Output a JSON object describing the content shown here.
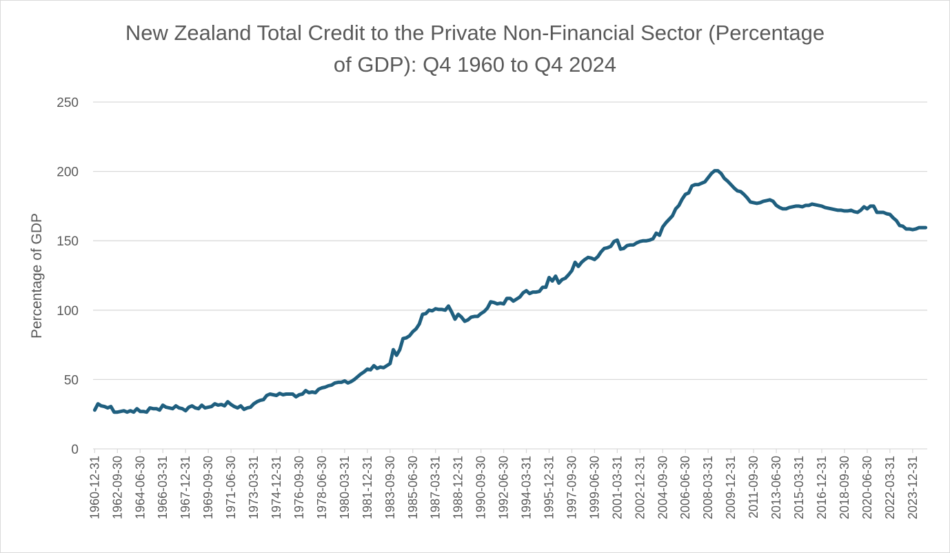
{
  "chart_data": {
    "type": "line",
    "title_lines": [
      "New Zealand Total Credit to the Private Non-Financial Sector (Percentage",
      "of GDP): Q4 1960 to Q4 2024"
    ],
    "xlabel": "",
    "ylabel": "Percentage of GDP",
    "ylim": [
      0,
      250
    ],
    "yticks": [
      0,
      50,
      100,
      150,
      200,
      250
    ],
    "x_range": [
      "1960-12-31",
      "2024-12-31"
    ],
    "grid": true,
    "legend": "none",
    "x_tick_labels": [
      "1960-12-31",
      "1962-09-30",
      "1964-06-30",
      "1966-03-31",
      "1967-12-31",
      "1969-09-30",
      "1971-06-30",
      "1973-03-31",
      "1974-12-31",
      "1976-09-30",
      "1978-06-30",
      "1980-03-31",
      "1981-12-31",
      "1983-09-30",
      "1985-06-30",
      "1987-03-31",
      "1988-12-31",
      "1990-09-30",
      "1992-06-30",
      "1994-03-31",
      "1995-12-31",
      "1997-09-30",
      "1999-06-30",
      "2001-03-31",
      "2002-12-31",
      "2004-09-30",
      "2006-06-30",
      "2008-03-31",
      "2009-12-31",
      "2011-09-30",
      "2013-06-30",
      "2015-03-31",
      "2016-12-31",
      "2018-09-30",
      "2020-06-30",
      "2022-03-31",
      "2023-12-31"
    ],
    "series": [
      {
        "name": "Total credit to private non-financial sector (% of GDP)",
        "color": "#1f5f7f",
        "points": [
          [
            "1960-12-31",
            28
          ],
          [
            "1961-03-31",
            32.5
          ],
          [
            "1961-06-30",
            31
          ],
          [
            "1961-09-30",
            30.5
          ],
          [
            "1961-12-31",
            29.5
          ],
          [
            "1962-03-31",
            30.5
          ],
          [
            "1962-06-30",
            26.5
          ],
          [
            "1962-09-30",
            26.5
          ],
          [
            "1962-12-31",
            27
          ],
          [
            "1963-03-31",
            27.5
          ],
          [
            "1963-06-30",
            26.5
          ],
          [
            "1963-09-30",
            27.5
          ],
          [
            "1963-12-31",
            26.5
          ],
          [
            "1964-03-31",
            29
          ],
          [
            "1964-06-30",
            27
          ],
          [
            "1964-09-30",
            27
          ],
          [
            "1964-12-31",
            26.5
          ],
          [
            "1965-03-31",
            29.5
          ],
          [
            "1965-06-30",
            29
          ],
          [
            "1965-09-30",
            29
          ],
          [
            "1965-12-31",
            28
          ],
          [
            "1966-03-31",
            31.5
          ],
          [
            "1966-06-30",
            30
          ],
          [
            "1966-09-30",
            29.5
          ],
          [
            "1966-12-31",
            29
          ],
          [
            "1967-03-31",
            31
          ],
          [
            "1967-06-30",
            29.5
          ],
          [
            "1967-09-30",
            29
          ],
          [
            "1967-12-31",
            27.5
          ],
          [
            "1968-03-31",
            30
          ],
          [
            "1968-06-30",
            31
          ],
          [
            "1968-09-30",
            29.5
          ],
          [
            "1968-12-31",
            29
          ],
          [
            "1969-03-31",
            31.5
          ],
          [
            "1969-06-30",
            29.5
          ],
          [
            "1969-09-30",
            30
          ],
          [
            "1969-12-31",
            30.5
          ],
          [
            "1970-03-31",
            32.5
          ],
          [
            "1970-06-30",
            31.5
          ],
          [
            "1970-09-30",
            32
          ],
          [
            "1970-12-31",
            31
          ],
          [
            "1971-03-31",
            34
          ],
          [
            "1971-06-30",
            32
          ],
          [
            "1971-09-30",
            30.5
          ],
          [
            "1971-12-31",
            29.5
          ],
          [
            "1972-03-31",
            31
          ],
          [
            "1972-06-30",
            28.5
          ],
          [
            "1972-09-30",
            29.5
          ],
          [
            "1972-12-31",
            30
          ],
          [
            "1973-03-31",
            32.5
          ],
          [
            "1973-06-30",
            34
          ],
          [
            "1973-09-30",
            35
          ],
          [
            "1973-12-31",
            35.5
          ],
          [
            "1974-03-31",
            38.5
          ],
          [
            "1974-06-30",
            39.5
          ],
          [
            "1974-09-30",
            39
          ],
          [
            "1974-12-31",
            38.5
          ],
          [
            "1975-03-31",
            40
          ],
          [
            "1975-06-30",
            39
          ],
          [
            "1975-09-30",
            39.5
          ],
          [
            "1975-12-31",
            39.5
          ],
          [
            "1976-03-31",
            39.5
          ],
          [
            "1976-06-30",
            37.5
          ],
          [
            "1976-09-30",
            39
          ],
          [
            "1976-12-31",
            39.5
          ],
          [
            "1977-03-31",
            42
          ],
          [
            "1977-06-30",
            40.5
          ],
          [
            "1977-09-30",
            41
          ],
          [
            "1977-12-31",
            40.5
          ],
          [
            "1978-03-31",
            43
          ],
          [
            "1978-06-30",
            44
          ],
          [
            "1978-09-30",
            44.5
          ],
          [
            "1978-12-31",
            45.5
          ],
          [
            "1979-03-31",
            46
          ],
          [
            "1979-06-30",
            47.5
          ],
          [
            "1979-09-30",
            48
          ],
          [
            "1979-12-31",
            48
          ],
          [
            "1980-03-31",
            49
          ],
          [
            "1980-06-30",
            47.5
          ],
          [
            "1980-09-30",
            48.5
          ],
          [
            "1980-12-31",
            50
          ],
          [
            "1981-03-31",
            52
          ],
          [
            "1981-06-30",
            54
          ],
          [
            "1981-09-30",
            55.5
          ],
          [
            "1981-12-31",
            57.5
          ],
          [
            "1982-03-31",
            57
          ],
          [
            "1982-06-30",
            60
          ],
          [
            "1982-09-30",
            58
          ],
          [
            "1982-12-31",
            59
          ],
          [
            "1983-03-31",
            58.5
          ],
          [
            "1983-06-30",
            60
          ],
          [
            "1983-09-30",
            61.5
          ],
          [
            "1983-12-31",
            71.5
          ],
          [
            "1984-03-31",
            67.5
          ],
          [
            "1984-06-30",
            71.5
          ],
          [
            "1984-09-30",
            79.5
          ],
          [
            "1984-12-31",
            80
          ],
          [
            "1985-03-31",
            81.5
          ],
          [
            "1985-06-30",
            84.5
          ],
          [
            "1985-09-30",
            86.5
          ],
          [
            "1985-12-31",
            90
          ],
          [
            "1986-03-31",
            97
          ],
          [
            "1986-06-30",
            97.5
          ],
          [
            "1986-09-30",
            100
          ],
          [
            "1986-12-31",
            99.5
          ],
          [
            "1987-03-31",
            101
          ],
          [
            "1987-06-30",
            100.5
          ],
          [
            "1987-09-30",
            100.5
          ],
          [
            "1987-12-31",
            100
          ],
          [
            "1988-03-31",
            103
          ],
          [
            "1988-06-30",
            98.5
          ],
          [
            "1988-09-30",
            93.5
          ],
          [
            "1988-12-31",
            97
          ],
          [
            "1989-03-31",
            95
          ],
          [
            "1989-06-30",
            92
          ],
          [
            "1989-09-30",
            93
          ],
          [
            "1989-12-31",
            95
          ],
          [
            "1990-03-31",
            95.5
          ],
          [
            "1990-06-30",
            95.5
          ],
          [
            "1990-09-30",
            97.5
          ],
          [
            "1990-12-31",
            99
          ],
          [
            "1991-03-31",
            101.5
          ],
          [
            "1991-06-30",
            106
          ],
          [
            "1991-09-30",
            105.5
          ],
          [
            "1991-12-31",
            104.5
          ],
          [
            "1992-03-31",
            105
          ],
          [
            "1992-06-30",
            104.5
          ],
          [
            "1992-09-30",
            108.5
          ],
          [
            "1992-12-31",
            108.5
          ],
          [
            "1993-03-31",
            106.5
          ],
          [
            "1993-06-30",
            108
          ],
          [
            "1993-09-30",
            109.5
          ],
          [
            "1993-12-31",
            112.5
          ],
          [
            "1994-03-31",
            114
          ],
          [
            "1994-06-30",
            112
          ],
          [
            "1994-09-30",
            113
          ],
          [
            "1994-12-31",
            113
          ],
          [
            "1995-03-31",
            113.5
          ],
          [
            "1995-06-30",
            116.5
          ],
          [
            "1995-09-30",
            116.5
          ],
          [
            "1995-12-31",
            123.5
          ],
          [
            "1996-03-31",
            121
          ],
          [
            "1996-06-30",
            124.5
          ],
          [
            "1996-09-30",
            119.5
          ],
          [
            "1996-12-31",
            122
          ],
          [
            "1997-03-31",
            123
          ],
          [
            "1997-06-30",
            125.5
          ],
          [
            "1997-09-30",
            128.5
          ],
          [
            "1997-12-31",
            134.5
          ],
          [
            "1998-03-31",
            131.5
          ],
          [
            "1998-06-30",
            134.5
          ],
          [
            "1998-09-30",
            136.5
          ],
          [
            "1998-12-31",
            138
          ],
          [
            "1999-03-31",
            137.5
          ],
          [
            "1999-06-30",
            136.5
          ],
          [
            "1999-09-30",
            138.5
          ],
          [
            "1999-12-31",
            142
          ],
          [
            "2000-03-31",
            144.5
          ],
          [
            "2000-06-30",
            145
          ],
          [
            "2000-09-30",
            146
          ],
          [
            "2000-12-31",
            149.5
          ],
          [
            "2001-03-31",
            150.5
          ],
          [
            "2001-06-30",
            144
          ],
          [
            "2001-09-30",
            144.5
          ],
          [
            "2001-12-31",
            146.5
          ],
          [
            "2002-03-31",
            147
          ],
          [
            "2002-06-30",
            147
          ],
          [
            "2002-09-30",
            148.5
          ],
          [
            "2002-12-31",
            149.5
          ],
          [
            "2003-03-31",
            150
          ],
          [
            "2003-06-30",
            150
          ],
          [
            "2003-09-30",
            150.5
          ],
          [
            "2003-12-31",
            151.5
          ],
          [
            "2004-03-31",
            155.5
          ],
          [
            "2004-06-30",
            154
          ],
          [
            "2004-09-30",
            160
          ],
          [
            "2004-12-31",
            163
          ],
          [
            "2005-03-31",
            165.5
          ],
          [
            "2005-06-30",
            168
          ],
          [
            "2005-09-30",
            173
          ],
          [
            "2005-12-31",
            175.5
          ],
          [
            "2006-03-31",
            180
          ],
          [
            "2006-06-30",
            183.5
          ],
          [
            "2006-09-30",
            184.5
          ],
          [
            "2006-12-31",
            189.5
          ],
          [
            "2007-03-31",
            190.5
          ],
          [
            "2007-06-30",
            190.5
          ],
          [
            "2007-09-30",
            191.5
          ],
          [
            "2007-12-31",
            192.5
          ],
          [
            "2008-03-31",
            195.5
          ],
          [
            "2008-06-30",
            198.5
          ],
          [
            "2008-09-30",
            200.5
          ],
          [
            "2008-12-31",
            200.5
          ],
          [
            "2009-03-31",
            198.5
          ],
          [
            "2009-06-30",
            195
          ],
          [
            "2009-09-30",
            193
          ],
          [
            "2009-12-31",
            190.5
          ],
          [
            "2010-03-31",
            188
          ],
          [
            "2010-06-30",
            186
          ],
          [
            "2010-09-30",
            185.5
          ],
          [
            "2010-12-31",
            183.5
          ],
          [
            "2011-03-31",
            181
          ],
          [
            "2011-06-30",
            178
          ],
          [
            "2011-09-30",
            177.5
          ],
          [
            "2011-12-31",
            177
          ],
          [
            "2012-03-31",
            177.5
          ],
          [
            "2012-06-30",
            178.5
          ],
          [
            "2012-09-30",
            179
          ],
          [
            "2012-12-31",
            179.5
          ],
          [
            "2013-03-31",
            178.5
          ],
          [
            "2013-06-30",
            175.5
          ],
          [
            "2013-09-30",
            174
          ],
          [
            "2013-12-31",
            173
          ],
          [
            "2014-03-31",
            173
          ],
          [
            "2014-06-30",
            174
          ],
          [
            "2014-09-30",
            174.5
          ],
          [
            "2014-12-31",
            175
          ],
          [
            "2015-03-31",
            175
          ],
          [
            "2015-06-30",
            174.5
          ],
          [
            "2015-09-30",
            175.5
          ],
          [
            "2015-12-31",
            175.5
          ],
          [
            "2016-03-31",
            176.5
          ],
          [
            "2016-06-30",
            176
          ],
          [
            "2016-09-30",
            175.5
          ],
          [
            "2016-12-31",
            175
          ],
          [
            "2017-03-31",
            174
          ],
          [
            "2017-06-30",
            173.5
          ],
          [
            "2017-09-30",
            173
          ],
          [
            "2017-12-31",
            172.5
          ],
          [
            "2018-03-31",
            172
          ],
          [
            "2018-06-30",
            172
          ],
          [
            "2018-09-30",
            171.5
          ],
          [
            "2018-12-31",
            171.5
          ],
          [
            "2019-03-31",
            172
          ],
          [
            "2019-06-30",
            171
          ],
          [
            "2019-09-30",
            170.5
          ],
          [
            "2019-12-31",
            172
          ],
          [
            "2020-03-31",
            174.5
          ],
          [
            "2020-06-30",
            173
          ],
          [
            "2020-09-30",
            175
          ],
          [
            "2020-12-31",
            175
          ],
          [
            "2021-03-31",
            170.5
          ],
          [
            "2021-06-30",
            170.5
          ],
          [
            "2021-09-30",
            170.5
          ],
          [
            "2021-12-31",
            169.5
          ],
          [
            "2022-03-31",
            169
          ],
          [
            "2022-06-30",
            166.5
          ],
          [
            "2022-09-30",
            164.5
          ],
          [
            "2022-12-31",
            161
          ],
          [
            "2023-03-31",
            160.5
          ],
          [
            "2023-06-30",
            158.5
          ],
          [
            "2023-09-30",
            158.5
          ],
          [
            "2023-12-31",
            158
          ],
          [
            "2024-03-31",
            158.5
          ],
          [
            "2024-06-30",
            159.5
          ],
          [
            "2024-09-30",
            159.5
          ],
          [
            "2024-12-31",
            159.5
          ]
        ]
      }
    ]
  }
}
